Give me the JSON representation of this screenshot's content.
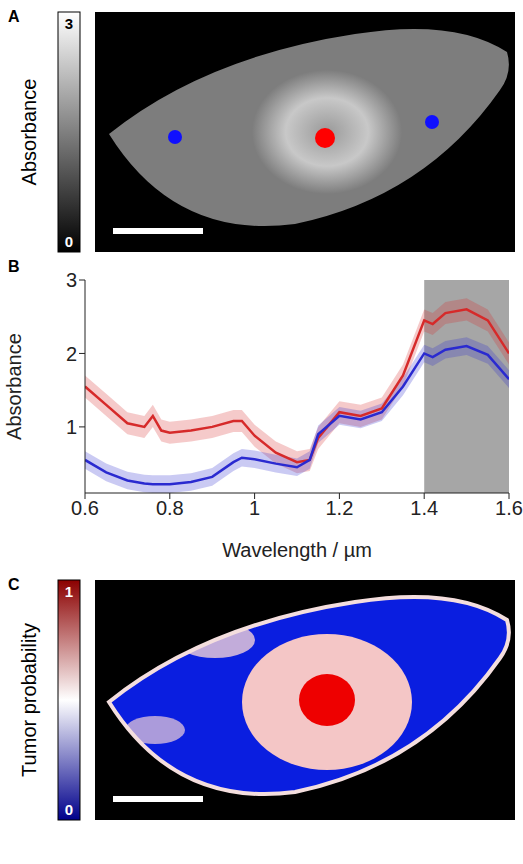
{
  "chart_data": [
    {
      "panel": "A",
      "type": "image",
      "colorbar": {
        "label": "Absorbance",
        "range": [
          0,
          3
        ],
        "ticks": [
          0,
          3
        ],
        "colors": [
          "#000000",
          "#ffffff"
        ]
      }
    },
    {
      "panel": "B",
      "type": "line",
      "xlabel": "Wavelength / µm",
      "ylabel": "Absorbance",
      "x": [
        0.6,
        0.65,
        0.7,
        0.74,
        0.76,
        0.78,
        0.8,
        0.85,
        0.9,
        0.95,
        0.97,
        1.0,
        1.05,
        1.1,
        1.13,
        1.15,
        1.2,
        1.25,
        1.3,
        1.35,
        1.4,
        1.42,
        1.45,
        1.5,
        1.55,
        1.6
      ],
      "xlim": [
        0.6,
        1.6
      ],
      "xticks": [
        0.6,
        0.8,
        1,
        1.2,
        1.4,
        1.6
      ],
      "ylim": [
        0.1,
        3
      ],
      "yticks": [
        1,
        2,
        3
      ],
      "shaded_region": [
        1.4,
        1.6
      ],
      "series": [
        {
          "color": "#d62a2a",
          "values": [
            1.55,
            1.3,
            1.05,
            1.0,
            1.15,
            0.95,
            0.92,
            0.95,
            1.0,
            1.08,
            1.08,
            0.88,
            0.65,
            0.52,
            0.55,
            0.85,
            1.2,
            1.15,
            1.25,
            1.7,
            2.45,
            2.4,
            2.55,
            2.6,
            2.45,
            2.0
          ],
          "errors": [
            0.15,
            0.15,
            0.15,
            0.15,
            0.15,
            0.15,
            0.15,
            0.15,
            0.15,
            0.15,
            0.15,
            0.15,
            0.15,
            0.15,
            0.15,
            0.15,
            0.15,
            0.15,
            0.15,
            0.15,
            0.15,
            0.15,
            0.15,
            0.15,
            0.15,
            0.15
          ]
        },
        {
          "color": "#2a2ad0",
          "values": [
            0.55,
            0.38,
            0.27,
            0.23,
            0.22,
            0.22,
            0.22,
            0.25,
            0.32,
            0.52,
            0.58,
            0.56,
            0.5,
            0.45,
            0.55,
            0.9,
            1.15,
            1.1,
            1.2,
            1.55,
            2.0,
            1.95,
            2.05,
            2.1,
            1.98,
            1.65
          ],
          "errors": [
            0.12,
            0.12,
            0.12,
            0.12,
            0.12,
            0.12,
            0.12,
            0.12,
            0.12,
            0.12,
            0.12,
            0.12,
            0.12,
            0.12,
            0.12,
            0.12,
            0.12,
            0.12,
            0.12,
            0.12,
            0.12,
            0.12,
            0.12,
            0.12,
            0.12,
            0.12
          ]
        }
      ]
    },
    {
      "panel": "C",
      "type": "image",
      "colorbar": {
        "label": "Tumor probability",
        "range": [
          0,
          1
        ],
        "ticks": [
          0,
          1
        ],
        "colors": [
          "#00008b",
          "#ffffff",
          "#8b0000"
        ]
      }
    }
  ]
}
